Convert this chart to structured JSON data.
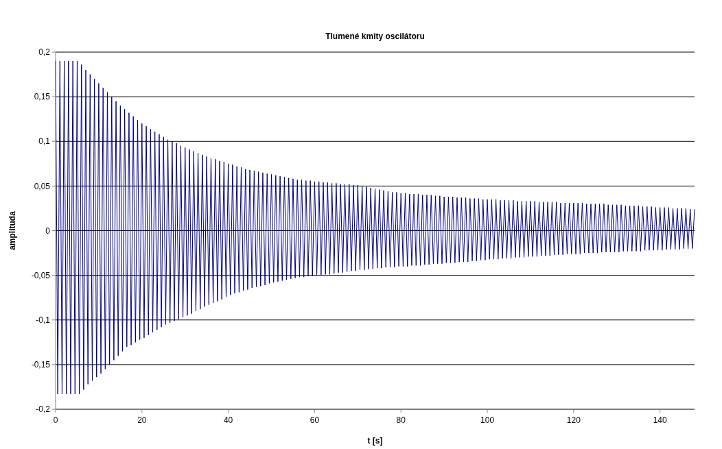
{
  "chart_data": {
    "type": "line",
    "title": "Tlumené kmity oscilátoru",
    "xlabel": "t [s]",
    "ylabel": "amplituda",
    "xlim": [
      0,
      148
    ],
    "xticks": [
      0,
      20,
      40,
      60,
      80,
      100,
      120,
      140
    ],
    "ylim": [
      -0.2,
      0.2
    ],
    "yticks": [
      {
        "value": -0.2,
        "label": "-0,2"
      },
      {
        "value": -0.15,
        "label": "-0,15"
      },
      {
        "value": -0.1,
        "label": "-0,1"
      },
      {
        "value": -0.05,
        "label": "-0,05"
      },
      0,
      {
        "value": 0.05,
        "label": "0,05"
      },
      {
        "value": 0.1,
        "label": "0,1"
      },
      {
        "value": 0.15,
        "label": "0,15"
      },
      {
        "value": 0.2,
        "label": "0,2"
      }
    ],
    "grid": "y",
    "marker": "none",
    "series": [
      {
        "color": "#000080",
        "x": [
          0,
          0.5,
          1,
          1.5,
          2,
          2.5,
          3,
          3.5,
          4,
          4.5,
          5,
          5.5,
          6,
          6.5,
          7,
          7.5,
          8,
          8.5,
          9,
          9.5,
          10,
          10.5,
          11,
          11.5,
          12,
          12.5,
          13,
          13.5,
          14,
          14.5,
          15,
          15.5,
          16,
          16.5,
          17,
          17.5,
          18,
          18.5,
          19,
          19.5,
          20,
          20.5,
          21,
          21.5,
          22,
          22.5,
          23,
          23.5,
          24,
          24.5,
          25,
          25.5,
          26,
          26.5,
          27,
          27.5,
          28,
          28.5,
          29,
          29.5,
          30,
          30.5,
          31,
          31.5,
          32,
          32.5,
          33,
          33.5,
          34,
          34.5,
          35,
          35.5,
          36,
          36.5,
          37,
          37.5,
          38,
          38.5,
          39,
          39.5,
          40,
          40.5,
          41,
          41.5,
          42,
          42.5,
          43,
          43.5,
          44,
          44.5,
          45,
          45.5,
          46,
          46.5,
          47,
          47.5,
          48,
          48.5,
          49,
          49.5,
          50,
          50.5,
          51,
          51.5,
          52,
          52.5,
          53,
          53.5,
          54,
          54.5,
          55,
          55.5,
          56,
          56.5,
          57,
          57.5,
          58,
          58.5,
          59,
          59.5,
          60,
          60.5,
          61,
          61.5,
          62,
          62.5,
          63,
          63.5,
          64,
          64.5,
          65,
          65.5,
          66,
          66.5,
          67,
          67.5,
          68,
          68.5,
          69,
          69.5,
          70,
          70.5,
          71,
          71.5,
          72,
          72.5,
          73,
          73.5,
          74,
          74.5,
          75,
          75.5,
          76,
          76.5,
          77,
          77.5,
          78,
          78.5,
          79,
          79.5,
          80,
          80.5,
          81,
          81.5,
          82,
          82.5,
          83,
          83.5,
          84,
          84.5,
          85,
          85.5,
          86,
          86.5,
          87,
          87.5,
          88,
          88.5,
          89,
          89.5,
          90,
          90.5,
          91,
          91.5,
          92,
          92.5,
          93,
          93.5,
          94,
          94.5,
          95,
          95.5,
          96,
          96.5,
          97,
          97.5,
          98,
          98.5,
          99,
          99.5,
          100,
          100.5,
          101,
          101.5,
          102,
          102.5,
          103,
          103.5,
          104,
          104.5,
          105,
          105.5,
          106,
          106.5,
          107,
          107.5,
          108,
          108.5,
          109,
          109.5,
          110,
          110.5,
          111,
          111.5,
          112,
          112.5,
          113,
          113.5,
          114,
          114.5,
          115,
          115.5,
          116,
          116.5,
          117,
          117.5,
          118,
          118.5,
          119,
          119.5,
          120,
          120.5,
          121,
          121.5,
          122,
          122.5,
          123,
          123.5,
          124,
          124.5,
          125,
          125.5,
          126,
          126.5,
          127,
          127.5,
          128,
          128.5,
          129,
          129.5,
          130,
          130.5,
          131,
          131.5,
          132,
          132.5,
          133,
          133.5,
          134,
          134.5,
          135,
          135.5,
          136,
          136.5,
          137,
          137.5,
          138,
          138.5,
          139,
          139.5,
          140,
          140.5,
          141,
          141.5,
          142,
          142.5,
          143,
          143.5,
          144,
          144.5,
          145,
          145.5,
          146,
          146.5,
          147,
          147.5,
          148
        ],
        "values": [
          0.19,
          -0.183,
          0.19,
          -0.183,
          0.19,
          -0.183,
          0.19,
          -0.183,
          0.19,
          -0.183,
          0.19,
          -0.183,
          0.186,
          -0.178,
          0.18,
          -0.172,
          0.175,
          -0.168,
          0.17,
          -0.164,
          0.165,
          -0.16,
          0.16,
          -0.155,
          0.155,
          -0.15,
          0.15,
          -0.145,
          0.145,
          -0.14,
          0.14,
          -0.135,
          0.136,
          -0.13,
          0.132,
          -0.128,
          0.128,
          -0.125,
          0.124,
          -0.122,
          0.12,
          -0.12,
          0.117,
          -0.117,
          0.114,
          -0.114,
          0.111,
          -0.111,
          0.108,
          -0.108,
          0.105,
          -0.105,
          0.102,
          -0.103,
          0.1,
          -0.101,
          0.098,
          -0.099,
          0.095,
          -0.097,
          0.093,
          -0.095,
          0.091,
          -0.093,
          0.089,
          -0.09,
          0.087,
          -0.088,
          0.085,
          -0.085,
          0.083,
          -0.083,
          0.081,
          -0.081,
          0.08,
          -0.079,
          0.078,
          -0.077,
          0.077,
          -0.074,
          0.075,
          -0.072,
          0.074,
          -0.07,
          0.072,
          -0.069,
          0.071,
          -0.067,
          0.069,
          -0.066,
          0.068,
          -0.064,
          0.067,
          -0.063,
          0.066,
          -0.062,
          0.065,
          -0.061,
          0.064,
          -0.059,
          0.063,
          -0.058,
          0.062,
          -0.057,
          0.061,
          -0.056,
          0.06,
          -0.055,
          0.059,
          -0.054,
          0.058,
          -0.053,
          0.057,
          -0.052,
          0.057,
          -0.052,
          0.056,
          -0.051,
          0.056,
          -0.051,
          0.055,
          -0.05,
          0.055,
          -0.05,
          0.054,
          -0.049,
          0.054,
          -0.049,
          0.053,
          -0.048,
          0.053,
          -0.047,
          0.052,
          -0.047,
          0.052,
          -0.046,
          0.052,
          -0.045,
          0.051,
          -0.045,
          0.051,
          -0.044,
          0.05,
          -0.044,
          0.049,
          -0.043,
          0.048,
          -0.043,
          0.047,
          -0.042,
          0.046,
          -0.042,
          0.045,
          -0.041,
          0.044,
          -0.041,
          0.043,
          -0.041,
          0.043,
          -0.04,
          0.042,
          -0.04,
          0.042,
          -0.04,
          0.041,
          -0.039,
          0.041,
          -0.039,
          0.041,
          -0.039,
          0.04,
          -0.038,
          0.04,
          -0.038,
          0.04,
          -0.037,
          0.039,
          -0.037,
          0.039,
          -0.037,
          0.038,
          -0.036,
          0.038,
          -0.036,
          0.038,
          -0.036,
          0.037,
          -0.035,
          0.037,
          -0.035,
          0.037,
          -0.035,
          0.036,
          -0.034,
          0.036,
          -0.034,
          0.036,
          -0.033,
          0.035,
          -0.033,
          0.035,
          -0.032,
          0.035,
          -0.032,
          0.035,
          -0.032,
          0.034,
          -0.031,
          0.034,
          -0.031,
          0.034,
          -0.031,
          0.034,
          -0.03,
          0.033,
          -0.03,
          0.033,
          -0.03,
          0.033,
          -0.029,
          0.033,
          -0.029,
          0.033,
          -0.029,
          0.032,
          -0.028,
          0.032,
          -0.028,
          0.032,
          -0.028,
          0.032,
          -0.027,
          0.032,
          -0.027,
          0.031,
          -0.027,
          0.031,
          -0.026,
          0.031,
          -0.026,
          0.031,
          -0.026,
          0.031,
          -0.026,
          0.031,
          -0.025,
          0.03,
          -0.025,
          0.03,
          -0.025,
          0.03,
          -0.025,
          0.03,
          -0.024,
          0.03,
          -0.024,
          0.029,
          -0.024,
          0.029,
          -0.024,
          0.029,
          -0.024,
          0.029,
          -0.023,
          0.028,
          -0.023,
          0.028,
          -0.023,
          0.028,
          -0.023,
          0.028,
          -0.023,
          0.027,
          -0.022,
          0.027,
          -0.022,
          0.027,
          -0.022,
          0.026,
          -0.022,
          0.026,
          -0.022,
          0.026,
          -0.021,
          0.026,
          -0.021,
          0.025,
          -0.021,
          0.025,
          -0.021,
          0.025,
          -0.02,
          0.025,
          -0.02,
          0.024,
          -0.02,
          0.024
        ]
      }
    ]
  }
}
